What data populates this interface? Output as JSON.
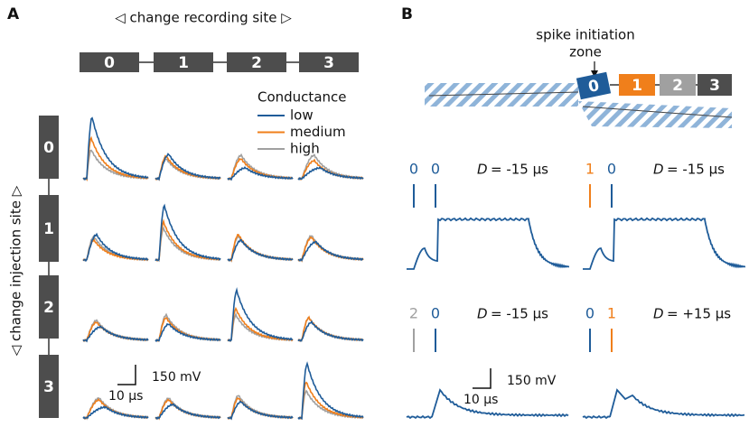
{
  "panel_a": {
    "label": "A",
    "recording_axis_label": "◁ change recording site ▷",
    "injection_axis_label": "◁ change injection site ▷",
    "recording_sites": [
      "0",
      "1",
      "2",
      "3"
    ],
    "injection_sites": [
      "0",
      "1",
      "2",
      "3"
    ],
    "legend": {
      "title": "Conductance",
      "entries": [
        {
          "name": "low",
          "color": "#1f5c99"
        },
        {
          "name": "medium",
          "color": "#f07f1b"
        },
        {
          "name": "high",
          "color": "#a0a0a0"
        }
      ]
    },
    "scale_bar": {
      "time": "10 µs",
      "voltage": "150 mV"
    }
  },
  "panel_b": {
    "label": "B",
    "annotation": [
      "spike initiation",
      "zone"
    ],
    "sites": [
      "0",
      "1",
      "2",
      "3"
    ],
    "site_colors": [
      "#1f5c99",
      "#f07f1b",
      "#a0a0a0",
      "#4d4d4d"
    ],
    "traces": [
      {
        "markers": [
          {
            "text": "0",
            "color": "#1f5c99"
          },
          {
            "text": "0",
            "color": "#1f5c99"
          }
        ],
        "variable": "D",
        "delay": "= -15 µs"
      },
      {
        "markers": [
          {
            "text": "1",
            "color": "#f07f1b"
          },
          {
            "text": "0",
            "color": "#1f5c99"
          }
        ],
        "variable": "D",
        "delay": "= -15 µs"
      },
      {
        "markers": [
          {
            "text": "2",
            "color": "#a0a0a0"
          },
          {
            "text": "0",
            "color": "#1f5c99"
          }
        ],
        "variable": "D",
        "delay": "= -15 µs"
      },
      {
        "markers": [
          {
            "text": "0",
            "color": "#1f5c99"
          },
          {
            "text": "1",
            "color": "#f07f1b"
          }
        ],
        "variable": "D",
        "delay": "= +15 µs"
      }
    ],
    "scale_bar": {
      "time": "10 µs",
      "voltage": "150 mV"
    }
  }
}
